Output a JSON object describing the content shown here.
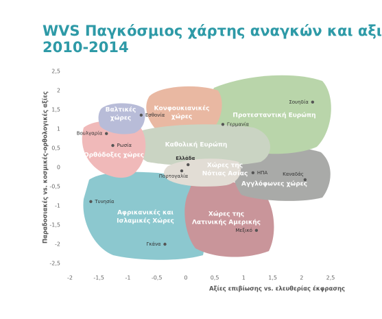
{
  "chart_data": {
    "type": "scatter",
    "title": [
      "WVS Παγκόσμιος χάρτης αναγκών και αξιών",
      "2010-2014"
    ],
    "x_label": "Αξίες επιβίωσης vs. ελευθερίας έκφρασης",
    "y_label": "Παραδοσιακές vs. κοσμικές-ορθολογικές αξίες",
    "xlim": [
      -2,
      2.5
    ],
    "ylim": [
      -2.5,
      2.5
    ],
    "xticks": [
      -2,
      {
        "value": -1.5,
        "label": "-1,5"
      },
      -1,
      {
        "value": -0.5,
        "label": "-0,5"
      },
      0,
      {
        "value": 0.5,
        "label": "0,5"
      },
      1,
      {
        "value": 1.5,
        "label": "1,5"
      },
      2,
      {
        "value": 2.5,
        "label": "2,5"
      }
    ],
    "yticks": [
      {
        "value": 2.5,
        "label": "2,5"
      },
      2,
      {
        "value": 1.5,
        "label": "1,5"
      },
      1,
      {
        "value": 0.5,
        "label": "0,5"
      },
      0,
      {
        "value": -0.5,
        "label": "-0,5"
      },
      -1,
      {
        "value": -1.5,
        "label": "-1,5"
      },
      -2,
      {
        "value": -2.5,
        "label": "-2,5"
      }
    ],
    "point_color": "#555555",
    "points": [
      {
        "name": "Σουηδία",
        "x": 2.19,
        "y": 1.7
      },
      {
        "name": "Γερμανία",
        "x": 0.64,
        "y": 1.12
      },
      {
        "name": "Εσθονία",
        "x": -0.77,
        "y": 1.36
      },
      {
        "name": "Βουλγαρία",
        "x": -1.37,
        "y": 0.88
      },
      {
        "name": "Ρωσία",
        "x": -1.26,
        "y": 0.57
      },
      {
        "name": "Ελλάδα",
        "x": 0.04,
        "y": 0.07
      },
      {
        "name": "Πορτογαλία",
        "x": -0.07,
        "y": -0.09
      },
      {
        "name": "ΗΠΑ",
        "x": 1.16,
        "y": -0.14
      },
      {
        "name": "Καναδάς",
        "x": 2.06,
        "y": -0.32
      },
      {
        "name": "Τυνησία",
        "x": -1.64,
        "y": -0.89
      },
      {
        "name": "Μεξικό",
        "x": 1.22,
        "y": -1.64
      },
      {
        "name": "Γκάνα",
        "x": -0.36,
        "y": -2.0
      }
    ],
    "regions": [
      [
        "Βαλτικές",
        "χώρες"
      ],
      [
        "Κονφουκιανικές",
        "χώρες"
      ],
      [
        "Προτεσταντική Ευρώπη"
      ],
      [
        "Ορθόδοξες χώρες"
      ],
      [
        "Καθολική Ευρώπη"
      ],
      [
        "Χώρες της",
        "Νότιας Ασίας"
      ],
      [
        "Αγγλόφωνες χώρες"
      ],
      [
        "Αφρικανικές και",
        "Ισλαμικές Χώρες"
      ],
      [
        "Χώρες της",
        "Λατινικής Αμερικής"
      ]
    ]
  }
}
